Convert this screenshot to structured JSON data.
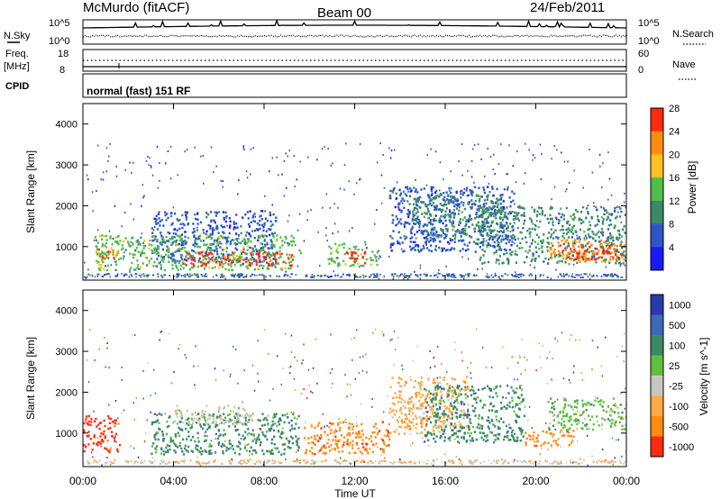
{
  "header": {
    "station": "McMurdo (fitACF)",
    "beam": "Beam 00",
    "date": "24/Feb/2011"
  },
  "strips": {
    "nsky_label": "N.Sky",
    "nsky_top": "10^5",
    "nsky_bottom": "10^0",
    "nsearch_label": "N.Search",
    "nsearch_top": "10^5",
    "nsearch_bottom": "10^0",
    "freq_label": "Freq.",
    "freq_unit": "[MHz]",
    "freq_top": "18",
    "freq_bottom": "8",
    "nave_label": "Nave",
    "nave_top": "60",
    "nave_bottom": "0",
    "cpid_label": "CPID",
    "cpid_text": "normal (fast) 151 RF"
  },
  "chart_data": [
    {
      "type": "heatmap",
      "name": "power",
      "ylabel": "Slant Range [km]",
      "colorbar_label": "Power [dB]",
      "ylim": [
        180,
        4500
      ],
      "xlim": [
        "00:00",
        "24:00"
      ],
      "yticks": [
        "1000",
        "2000",
        "3000",
        "4000"
      ],
      "colorbar_ticks": [
        "4",
        "8",
        "12",
        "16",
        "20",
        "24",
        "28"
      ],
      "colorbar_colors": [
        "#1a1aff",
        "#2e55c8",
        "#3a8a66",
        "#4fbf4a",
        "#ffc020",
        "#ff8c10",
        "#ff2a10"
      ],
      "regions": [
        {
          "x": [
            3.0,
            8.5
          ],
          "y": [
            600,
            1900
          ],
          "level": 1
        },
        {
          "x": [
            0.5,
            9.6
          ],
          "y": [
            450,
            1300
          ],
          "level": 3
        },
        {
          "x": [
            4.5,
            9.2
          ],
          "y": [
            550,
            900
          ],
          "level": 6
        },
        {
          "x": [
            0.6,
            1.5
          ],
          "y": [
            750,
            1050
          ],
          "level": 5
        },
        {
          "x": [
            10.8,
            13.0
          ],
          "y": [
            550,
            1100
          ],
          "level": 3
        },
        {
          "x": [
            11.5,
            12.5
          ],
          "y": [
            600,
            900
          ],
          "level": 6
        },
        {
          "x": [
            13.5,
            19.0
          ],
          "y": [
            900,
            2500
          ],
          "level": 1
        },
        {
          "x": [
            14.5,
            18.5
          ],
          "y": [
            1200,
            2300
          ],
          "level": 2
        },
        {
          "x": [
            17.5,
            24.0
          ],
          "y": [
            600,
            2000
          ],
          "level": 2
        },
        {
          "x": [
            20.5,
            24.0
          ],
          "y": [
            650,
            1200
          ],
          "level": 5
        },
        {
          "x": [
            21.5,
            23.8
          ],
          "y": [
            700,
            1050
          ],
          "level": 6
        }
      ]
    },
    {
      "type": "heatmap",
      "name": "velocity",
      "xlabel": "Time UT",
      "ylabel": "Slant Range [km]",
      "colorbar_label": "Velocity [m s^-1]",
      "ylim": [
        180,
        4500
      ],
      "xlim": [
        "00:00",
        "24:00"
      ],
      "xticks": [
        "00:00",
        "04:00",
        "08:00",
        "12:00",
        "16:00",
        "20:00",
        "00:00"
      ],
      "yticks": [
        "1000",
        "2000",
        "3000",
        "4000"
      ],
      "colorbar_ticks": [
        "1000",
        "500",
        "100",
        "25",
        "-25",
        "-100",
        "-500",
        "-1000"
      ],
      "colorbar_colors": [
        "#2a3aaa",
        "#3a6ab8",
        "#3a8a66",
        "#5fc040",
        "#c8c8c0",
        "#ffaa40",
        "#ff8a10",
        "#ff2a10"
      ],
      "regions": [
        {
          "x": [
            0.0,
            1.6
          ],
          "y": [
            550,
            1450
          ],
          "level": 7
        },
        {
          "x": [
            3.0,
            9.5
          ],
          "y": [
            500,
            1500
          ],
          "level": 2
        },
        {
          "x": [
            4.0,
            7.5
          ],
          "y": [
            1250,
            1700
          ],
          "level": 4
        },
        {
          "x": [
            9.6,
            13.5
          ],
          "y": [
            500,
            1300
          ],
          "level": 6
        },
        {
          "x": [
            13.5,
            17.0
          ],
          "y": [
            1000,
            2400
          ],
          "level": 5
        },
        {
          "x": [
            15.0,
            19.5
          ],
          "y": [
            800,
            2200
          ],
          "level": 2
        },
        {
          "x": [
            19.5,
            21.8
          ],
          "y": [
            700,
            1100
          ],
          "level": 6
        },
        {
          "x": [
            20.5,
            24.0
          ],
          "y": [
            1100,
            1900
          ],
          "level": 3
        }
      ]
    }
  ]
}
